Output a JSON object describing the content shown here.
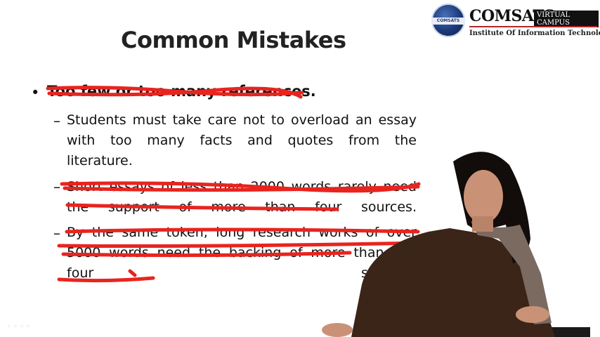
{
  "slide": {
    "title": "Common Mistakes",
    "bullet": "Too few or too many references.",
    "items": [
      {
        "lines": [
          "Students must take care not to overload an essay",
          "with too many facts and quotes from the",
          "literature."
        ]
      },
      {
        "lines": [
          "Short essays of less than 2000 words rarely need",
          "the support of more than four sources."
        ]
      },
      {
        "lines": [
          "By the same token, long research works of over",
          "5000 words need the backing of more than just",
          "four sources."
        ]
      }
    ]
  },
  "logo": {
    "name": "COMSATS",
    "badge": "VIRTUAL CAMPUS",
    "subtitle": "Institute Of Information Technology",
    "seal_text": "COMSATS"
  },
  "colors": {
    "annotation": "#e8241f",
    "logo_blue": "#1b3a7a"
  }
}
